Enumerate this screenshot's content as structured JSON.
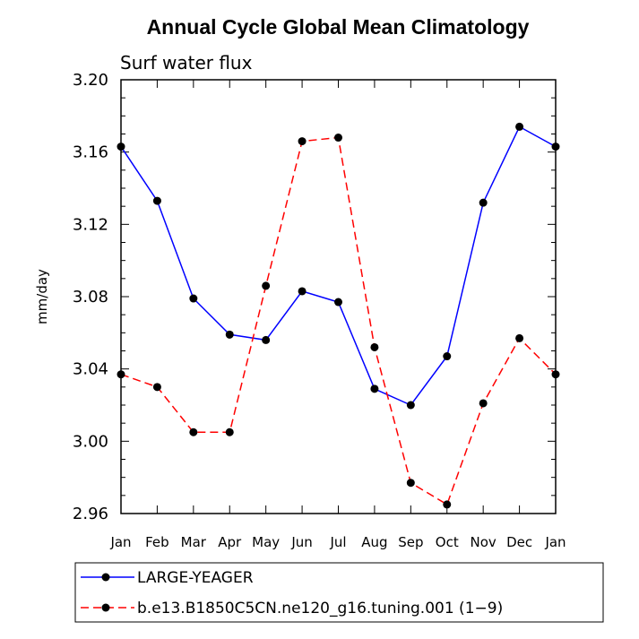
{
  "chart_data": {
    "type": "line",
    "title": "Annual Cycle Global Mean Climatology",
    "subtitle": "Surf water flux",
    "xlabel": "",
    "ylabel": "mm/day",
    "categories": [
      "Jan",
      "Feb",
      "Mar",
      "Apr",
      "May",
      "Jun",
      "Jul",
      "Aug",
      "Sep",
      "Oct",
      "Nov",
      "Dec",
      "Jan"
    ],
    "ylim": [
      2.96,
      3.2
    ],
    "yticks": [
      "2.96",
      "3.00",
      "3.04",
      "3.08",
      "3.12",
      "3.16",
      "3.20"
    ],
    "grid": false,
    "legend_position": "bottom",
    "series": [
      {
        "name": "LARGE-YEAGER",
        "color": "#0000ff",
        "dash": "solid",
        "values": [
          3.163,
          3.133,
          3.079,
          3.059,
          3.056,
          3.083,
          3.077,
          3.029,
          3.02,
          3.047,
          3.132,
          3.174,
          3.163
        ]
      },
      {
        "name": "b.e13.B1850C5CN.ne120_g16.tuning.001 (1−9)",
        "color": "#ff0000",
        "dash": "dashed",
        "values": [
          3.037,
          3.03,
          3.005,
          3.005,
          3.086,
          3.166,
          3.168,
          3.052,
          2.977,
          2.965,
          3.021,
          3.057,
          3.037
        ]
      }
    ]
  }
}
